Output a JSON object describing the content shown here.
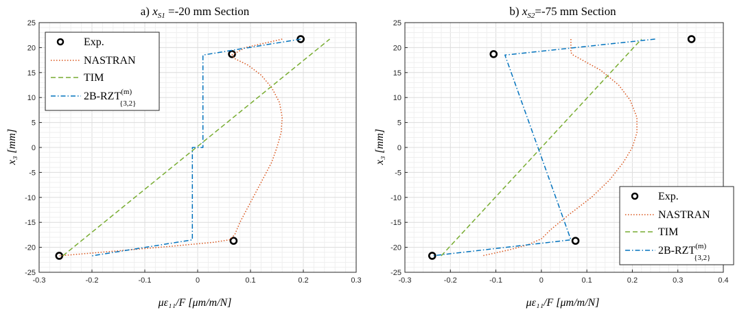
{
  "chart_data": [
    {
      "type": "line",
      "title_prefix": "a) ",
      "title_var": "x",
      "title_sub": "S1",
      "title_suffix": " =-20 mm Section",
      "xlabel": "με₁₁/F [μm/m/N]",
      "ylabel": "x₃ [mm]",
      "xlim": [
        -0.3,
        0.3
      ],
      "ylim": [
        -25,
        25
      ],
      "xticks": [
        "-0.3",
        "-0.2",
        "-0.1",
        "0",
        "0.1",
        "0.2",
        "0.3"
      ],
      "yticks": [
        "-25",
        "-20",
        "-15",
        "-10",
        "-5",
        "0",
        "5",
        "10",
        "15",
        "20",
        "25"
      ],
      "grid": true,
      "legend_position": "top-left",
      "legend": [
        "Exp.",
        "NASTRAN",
        "TIM",
        "2B-RZT"
      ],
      "legend_sup": "(m)",
      "legend_sub": "{3,2}",
      "series": [
        {
          "name": "Exp.",
          "style": "marker",
          "color": "#000000",
          "x": [
            0.195,
            0.065,
            -0.262,
            0.068
          ],
          "y": [
            21.7,
            18.7,
            -21.7,
            -18.7
          ]
        },
        {
          "name": "NASTRAN",
          "style": "dotted",
          "color": "#d95319",
          "x": [
            0.16,
            0.09,
            0.065,
            0.07,
            0.095,
            0.12,
            0.14,
            0.155,
            0.16,
            0.158,
            0.15,
            0.14,
            0.12,
            0.1,
            0.08,
            0.07,
            0.06,
            0.03,
            -0.05,
            -0.15,
            -0.262
          ],
          "y": [
            21.7,
            20.0,
            18.5,
            17.8,
            16.5,
            14.5,
            12.0,
            9.0,
            6.0,
            3.0,
            0.0,
            -3.0,
            -7.0,
            -11.0,
            -15.0,
            -17.5,
            -18.5,
            -19.0,
            -19.8,
            -20.7,
            -21.7
          ]
        },
        {
          "name": "TIM",
          "style": "dashed",
          "color": "#77ac30",
          "x": [
            -0.255,
            0.25
          ],
          "y": [
            -21.7,
            21.7
          ]
        },
        {
          "name": "2B-RZT",
          "style": "dashdot",
          "color": "#0072bd",
          "x": [
            0.195,
            0.01,
            0.01,
            -0.01,
            -0.01,
            -0.2
          ],
          "y": [
            21.7,
            18.5,
            0.0,
            0.0,
            -18.5,
            -21.7
          ]
        }
      ]
    },
    {
      "type": "line",
      "title_prefix": "b) ",
      "title_var": "x",
      "title_sub": "S2",
      "title_suffix": "=-75 mm Section",
      "xlabel": "με₁₁/F [μm/m/N]",
      "ylabel": "x₃ [mm]",
      "xlim": [
        -0.3,
        0.4
      ],
      "ylim": [
        -25,
        25
      ],
      "xticks": [
        "-0.3",
        "-0.2",
        "-0.1",
        "0",
        "0.1",
        "0.2",
        "0.3",
        "0.4"
      ],
      "yticks": [
        "-25",
        "-20",
        "-15",
        "-10",
        "-5",
        "0",
        "5",
        "10",
        "15",
        "20",
        "25"
      ],
      "grid": true,
      "legend_position": "bottom-right",
      "legend": [
        "Exp.",
        "NASTRAN",
        "TIM",
        "2B-RZT"
      ],
      "legend_sup": "(m)",
      "legend_sub": "{3,2}",
      "series": [
        {
          "name": "Exp.",
          "style": "marker",
          "color": "#000000",
          "x": [
            0.33,
            -0.105,
            -0.24,
            0.075
          ],
          "y": [
            21.7,
            18.7,
            -21.7,
            -18.7
          ]
        },
        {
          "name": "NASTRAN",
          "style": "dotted",
          "color": "#d95319",
          "x": [
            0.065,
            0.065,
            0.07,
            0.09,
            0.13,
            0.17,
            0.195,
            0.21,
            0.21,
            0.2,
            0.18,
            0.15,
            0.11,
            0.06,
            0.02,
            0.0,
            -0.03,
            -0.07,
            -0.13
          ],
          "y": [
            21.7,
            19.0,
            18.5,
            17.5,
            15.5,
            12.5,
            9.5,
            6.0,
            3.0,
            0.0,
            -3.0,
            -6.5,
            -10.0,
            -13.5,
            -16.5,
            -18.3,
            -19.5,
            -20.5,
            -21.7
          ]
        },
        {
          "name": "TIM",
          "style": "dashed",
          "color": "#77ac30",
          "x": [
            -0.22,
            0.22
          ],
          "y": [
            -21.7,
            21.7
          ]
        },
        {
          "name": "2B-RZT",
          "style": "dashdot",
          "color": "#0072bd",
          "x": [
            0.25,
            -0.08,
            0.065,
            -0.24
          ],
          "y": [
            21.7,
            18.5,
            -18.5,
            -21.7
          ]
        }
      ]
    }
  ]
}
